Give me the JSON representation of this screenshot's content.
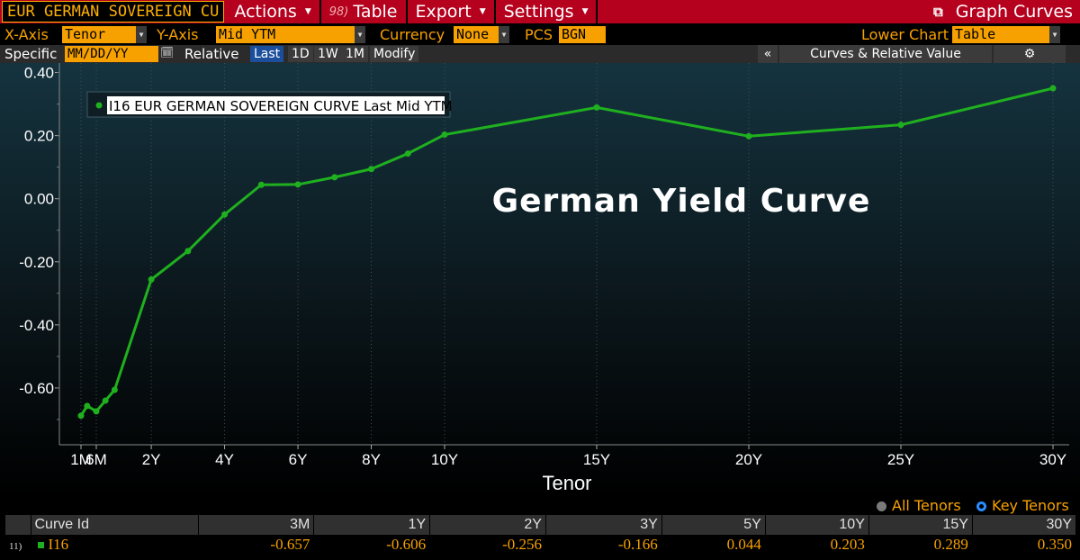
{
  "toolbar": {
    "security": "EUR GERMAN SOVEREIGN CU",
    "actions": "Actions",
    "table_num": "98)",
    "table": "Table",
    "export": "Export",
    "settings": "Settings",
    "graph_curves": "Graph Curves"
  },
  "options": {
    "xaxis_label": "X-Axis",
    "xaxis_value": "Tenor",
    "yaxis_label": "Y-Axis",
    "yaxis_value": "Mid YTM",
    "currency_label": "Currency",
    "currency_value": "None",
    "pcs_label": "PCS",
    "pcs_value": "BGN",
    "lower_chart_label": "Lower Chart",
    "lower_chart_value": "Table"
  },
  "range_bar": {
    "specific": "Specific",
    "date_placeholder": "MM/DD/YY",
    "relative": "Relative",
    "last": "Last",
    "d1": "1D",
    "w1": "1W",
    "m1": "1M",
    "modify": "Modify",
    "collapse": "«",
    "curves_rv": "Curves & Relative Value"
  },
  "chart": {
    "annotation": "German Yield Curve",
    "legend": "I16 EUR GERMAN SOVEREIGN CURVE Last Mid YTM",
    "xlabel": "Tenor",
    "line_color": "#1fb01f"
  },
  "chart_data": {
    "type": "line",
    "xlabel": "Tenor",
    "ylabel": "",
    "ylim": [
      -0.78,
      0.43
    ],
    "yticks": [
      -0.6,
      -0.4,
      -0.2,
      0.0,
      0.2,
      0.4
    ],
    "ytick_labels": [
      "-0.60",
      "-0.40",
      "-0.20",
      "0.00",
      "0.20",
      "0.40"
    ],
    "xticks_years": [
      0.083,
      0.5,
      2,
      4,
      6,
      8,
      10,
      15,
      20,
      25,
      30
    ],
    "xtick_labels": [
      "1M",
      "6M",
      "2Y",
      "4Y",
      "6Y",
      "8Y",
      "10Y",
      "15Y",
      "20Y",
      "25Y",
      "30Y"
    ],
    "series": [
      {
        "name": "I16 EUR GERMAN SOVEREIGN CURVE Last Mid YTM",
        "tenors_years": [
          0.083,
          0.25,
          0.5,
          0.75,
          1,
          2,
          3,
          4,
          5,
          6,
          7,
          8,
          9,
          10,
          15,
          20,
          25,
          30
        ],
        "values": [
          -0.688,
          -0.657,
          -0.674,
          -0.64,
          -0.606,
          -0.256,
          -0.166,
          -0.05,
          0.044,
          0.045,
          0.068,
          0.094,
          0.143,
          0.203,
          0.289,
          0.198,
          0.234,
          0.35
        ]
      }
    ]
  },
  "legend_row": {
    "all_tenors": "All Tenors",
    "key_tenors": "Key Tenors"
  },
  "table": {
    "headers": [
      "Curve Id",
      "3M",
      "1Y",
      "2Y",
      "3Y",
      "5Y",
      "10Y",
      "15Y",
      "30Y"
    ],
    "rows": [
      {
        "num": "11)",
        "id": "I16",
        "values": [
          "-0.657",
          "-0.606",
          "-0.256",
          "-0.166",
          "0.044",
          "0.203",
          "0.289",
          "0.350"
        ]
      }
    ]
  }
}
